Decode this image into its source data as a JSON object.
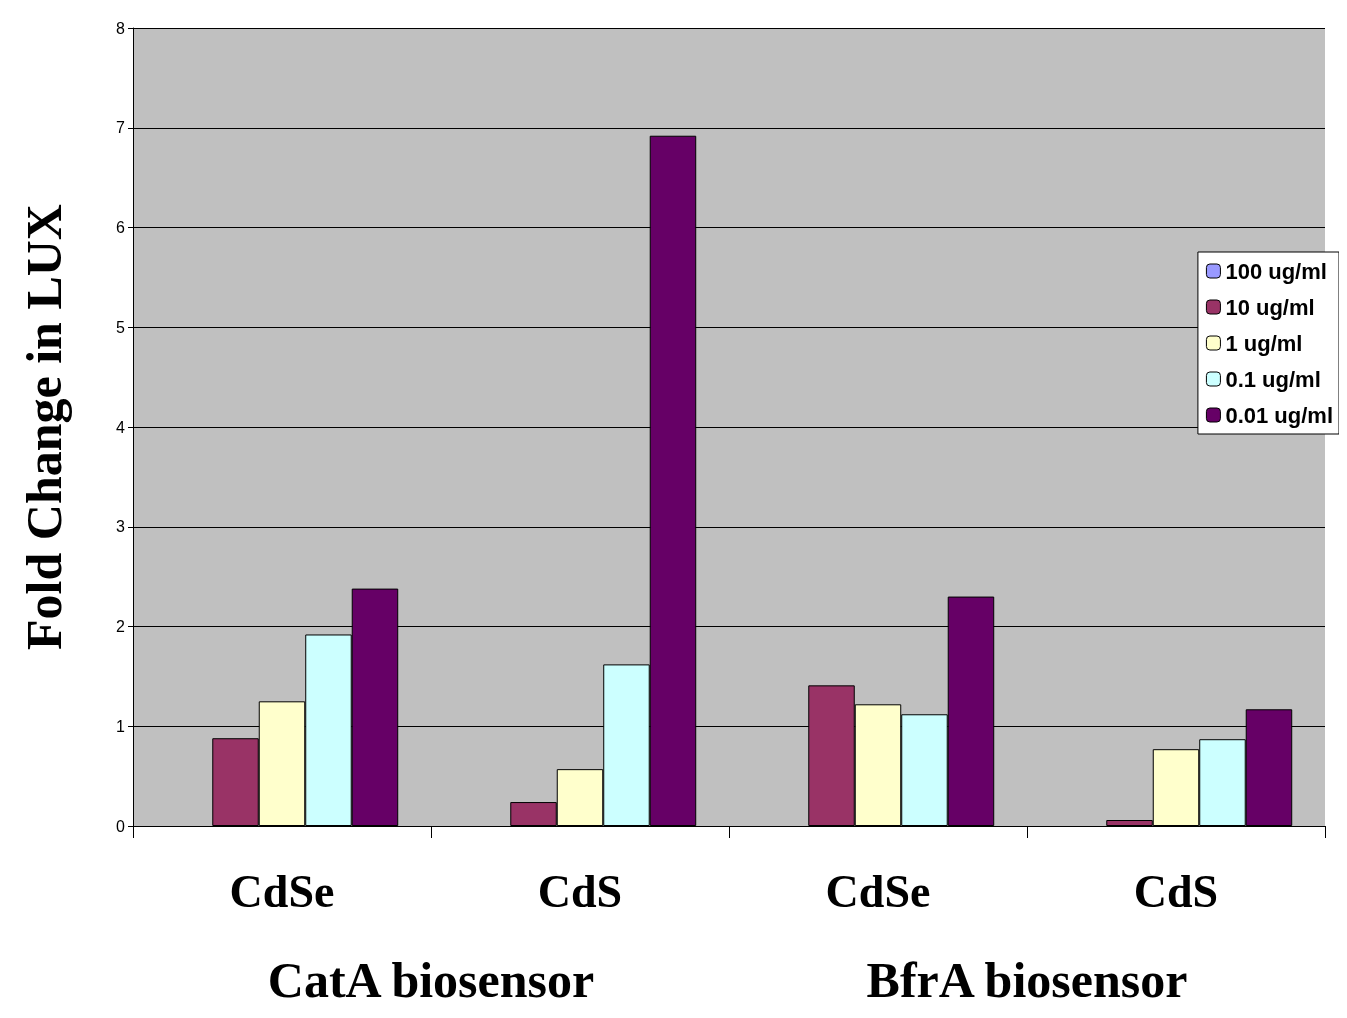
{
  "chart_data": {
    "type": "bar",
    "ylabel": "Fold Change in LUX",
    "categories": [
      "CdSe",
      "CdS",
      "CdSe",
      "CdS"
    ],
    "series": [
      {
        "name": "100 ug/ml",
        "color": "#9999ff",
        "values": [
          null,
          null,
          null,
          null
        ]
      },
      {
        "name": "10 ug/ml",
        "color": "#993366",
        "values": [
          0.88,
          0.24,
          1.41,
          0.06
        ]
      },
      {
        "name": "1 ug/ml",
        "color": "#ffffcc",
        "values": [
          1.25,
          0.57,
          1.22,
          0.77
        ]
      },
      {
        "name": "0.1 ug/ml",
        "color": "#ccffff",
        "values": [
          1.92,
          1.62,
          1.12,
          0.87
        ]
      },
      {
        "name": "0.01 ug/ml",
        "color": "#660066",
        "values": [
          2.38,
          6.92,
          2.3,
          1.17
        ]
      }
    ],
    "ylim": [
      0,
      8
    ],
    "yticks": [
      0,
      1,
      2,
      3,
      4,
      5,
      6,
      7,
      8
    ],
    "grid": "y",
    "legend": "right",
    "annotations": [
      "CatA biosensor",
      "BfrA biosensor"
    ]
  }
}
